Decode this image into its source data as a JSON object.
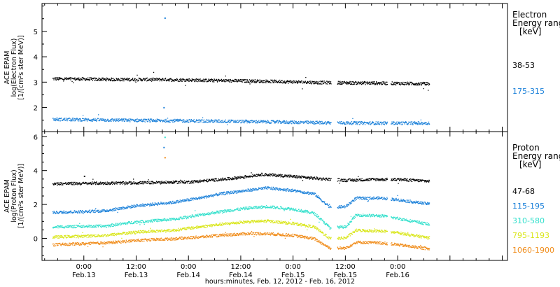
{
  "chart_data": [
    {
      "type": "scatter",
      "panel": "electron",
      "ylabel_lines": [
        "ACE EPAM",
        "log(Electron Flux)",
        "[1/(cm²s ster MeV)]"
      ],
      "yticks": [
        2,
        3,
        4,
        5
      ],
      "ylim": [
        1.05,
        6.1
      ],
      "legend_title_lines": [
        "Electron",
        "Energy ranges",
        "[keV]"
      ],
      "grid": false,
      "series": [
        {
          "name": "38-53",
          "color": "#000000",
          "approx_values": [
            [
              -0.3,
              3.15
            ],
            [
              0.3,
              3.12
            ],
            [
              0.75,
              3.12
            ],
            [
              1.25,
              3.08
            ],
            [
              1.75,
              3.05
            ],
            [
              2.25,
              3.0
            ],
            [
              2.75,
              2.98
            ],
            [
              3.3,
              2.95
            ]
          ],
          "outliers": []
        },
        {
          "name": "175-315",
          "color": "#1a80d9",
          "approx_values": [
            [
              -0.3,
              1.55
            ],
            [
              0.3,
              1.52
            ],
            [
              0.75,
              1.5
            ],
            [
              1.25,
              1.48
            ],
            [
              1.75,
              1.45
            ],
            [
              2.25,
              1.42
            ],
            [
              2.75,
              1.4
            ],
            [
              3.3,
              1.4
            ]
          ],
          "outliers": [
            [
              0.77,
              5.55
            ],
            [
              0.76,
              2.02
            ]
          ]
        }
      ]
    },
    {
      "type": "scatter",
      "panel": "proton",
      "ylabel_lines": [
        "ACE EPAM",
        "log(Proton Flux)",
        "[1/(cm²s ster MeV)]"
      ],
      "yticks": [
        0,
        2,
        4,
        6
      ],
      "ylim": [
        -1.3,
        6.3
      ],
      "legend_title_lines": [
        "Proton",
        "Energy ranges",
        "[keV]"
      ],
      "grid": false,
      "series": [
        {
          "name": "47-68",
          "color": "#000000",
          "approx_values": [
            [
              -0.3,
              3.25
            ],
            [
              0.5,
              3.3
            ],
            [
              1.0,
              3.35
            ],
            [
              1.4,
              3.55
            ],
            [
              1.7,
              3.8
            ],
            [
              1.95,
              3.7
            ],
            [
              2.25,
              3.55
            ],
            [
              2.5,
              3.45
            ],
            [
              2.75,
              3.5
            ],
            [
              3.0,
              3.5
            ],
            [
              3.3,
              3.4
            ]
          ],
          "outliers": [
            [
              0.0,
              3.7
            ]
          ]
        },
        {
          "name": "115-195",
          "color": "#1a80d9",
          "approx_values": [
            [
              -0.3,
              1.55
            ],
            [
              0.2,
              1.65
            ],
            [
              0.5,
              1.95
            ],
            [
              0.85,
              2.15
            ],
            [
              1.1,
              2.4
            ],
            [
              1.3,
              2.65
            ],
            [
              1.55,
              2.85
            ],
            [
              1.75,
              3.0
            ],
            [
              2.0,
              2.85
            ],
            [
              2.2,
              2.65
            ],
            [
              2.35,
              1.85
            ],
            [
              2.5,
              1.9
            ],
            [
              2.6,
              2.4
            ],
            [
              2.85,
              2.4
            ],
            [
              3.0,
              2.3
            ],
            [
              3.3,
              2.05
            ]
          ],
          "outliers": [
            [
              0.76,
              5.4
            ]
          ]
        },
        {
          "name": "310-580",
          "color": "#33e0cc",
          "approx_values": [
            [
              -0.3,
              0.7
            ],
            [
              0.2,
              0.75
            ],
            [
              0.5,
              1.0
            ],
            [
              0.85,
              1.15
            ],
            [
              1.1,
              1.4
            ],
            [
              1.3,
              1.6
            ],
            [
              1.55,
              1.8
            ],
            [
              1.75,
              1.9
            ],
            [
              2.0,
              1.75
            ],
            [
              2.2,
              1.5
            ],
            [
              2.35,
              0.65
            ],
            [
              2.5,
              0.7
            ],
            [
              2.6,
              1.4
            ],
            [
              2.85,
              1.35
            ],
            [
              3.0,
              1.2
            ],
            [
              3.3,
              0.85
            ]
          ],
          "outliers": [
            [
              0.77,
              6.0
            ]
          ]
        },
        {
          "name": "795-1193",
          "color": "#d9e619",
          "approx_values": [
            [
              -0.3,
              0.1
            ],
            [
              0.2,
              0.2
            ],
            [
              0.5,
              0.4
            ],
            [
              0.85,
              0.5
            ],
            [
              1.1,
              0.7
            ],
            [
              1.3,
              0.85
            ],
            [
              1.55,
              1.0
            ],
            [
              1.75,
              1.05
            ],
            [
              2.0,
              0.9
            ],
            [
              2.2,
              0.7
            ],
            [
              2.35,
              0.0
            ],
            [
              2.5,
              0.05
            ],
            [
              2.6,
              0.5
            ],
            [
              2.85,
              0.45
            ],
            [
              3.0,
              0.35
            ],
            [
              3.3,
              0.05
            ]
          ],
          "outliers": []
        },
        {
          "name": "1060-1900",
          "color": "#f08c1a",
          "approx_values": [
            [
              -0.3,
              -0.35
            ],
            [
              0.2,
              -0.25
            ],
            [
              0.5,
              -0.1
            ],
            [
              0.85,
              0.0
            ],
            [
              1.1,
              0.1
            ],
            [
              1.3,
              0.2
            ],
            [
              1.55,
              0.3
            ],
            [
              1.75,
              0.3
            ],
            [
              2.0,
              0.2
            ],
            [
              2.2,
              0.0
            ],
            [
              2.35,
              -0.55
            ],
            [
              2.5,
              -0.55
            ],
            [
              2.6,
              -0.2
            ],
            [
              2.85,
              -0.25
            ],
            [
              3.0,
              -0.35
            ],
            [
              3.3,
              -0.6
            ]
          ],
          "outliers": [
            [
              0.77,
              4.8
            ]
          ]
        }
      ]
    }
  ],
  "time_axis": {
    "x_unit": "days since 2012-02-13 00:00",
    "xlim": [
      -0.4,
      4.05
    ],
    "ticks": [
      {
        "x": 0.0,
        "time": "0:00",
        "date": "Feb.13"
      },
      {
        "x": 0.5,
        "time": "12:00",
        "date": "Feb.13"
      },
      {
        "x": 1.0,
        "time": "0:00",
        "date": "Feb.14"
      },
      {
        "x": 1.5,
        "time": "12:00",
        "date": "Feb.14"
      },
      {
        "x": 2.0,
        "time": "0:00",
        "date": "Feb.15"
      },
      {
        "x": 2.5,
        "time": "12:00",
        "date": "Feb.15"
      },
      {
        "x": 3.0,
        "time": "0:00",
        "date": "Feb.16"
      }
    ],
    "minor_tick_step": 0.125,
    "data_gaps": [
      [
        2.36,
        2.42
      ],
      [
        2.9,
        2.93
      ]
    ],
    "data_end": 3.3,
    "xlabel": "hours:minutes, Feb. 12, 2012 - Feb. 16, 2012"
  }
}
